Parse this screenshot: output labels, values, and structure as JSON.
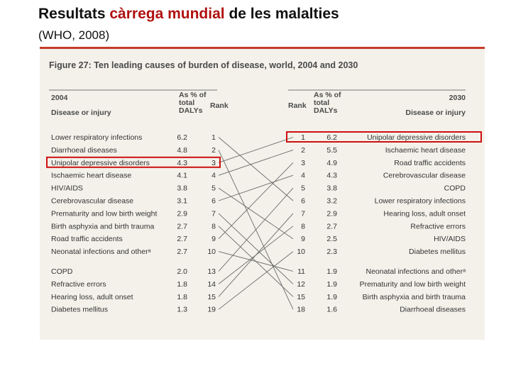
{
  "slide": {
    "title_part1": "Resultats",
    "title_highlight": "càrrega mundial",
    "title_part2": "de les malalties",
    "subtitle": "(WHO, 2008)"
  },
  "chart_data": {
    "type": "table",
    "title": "Figure 27: Ten leading causes of burden of disease, world, 2004 and 2030",
    "left": {
      "year": "2004",
      "col_disease": "Disease or injury",
      "col_pct": [
        "As % of",
        "total",
        "DALYs"
      ],
      "col_rank": "Rank",
      "rows": [
        {
          "disease": "Lower respiratory infections",
          "pct": "6.2",
          "rank": "1"
        },
        {
          "disease": "Diarrhoeal diseases",
          "pct": "4.8",
          "rank": "2"
        },
        {
          "disease": "Unipolar depressive disorders",
          "pct": "4.3",
          "rank": "3"
        },
        {
          "disease": "Ischaemic heart disease",
          "pct": "4.1",
          "rank": "4"
        },
        {
          "disease": "HIV/AIDS",
          "pct": "3.8",
          "rank": "5"
        },
        {
          "disease": "Cerebrovascular disease",
          "pct": "3.1",
          "rank": "6"
        },
        {
          "disease": "Prematurity and low birth weight",
          "pct": "2.9",
          "rank": "7"
        },
        {
          "disease": "Birth asphyxia and birth trauma",
          "pct": "2.7",
          "rank": "8"
        },
        {
          "disease": "Road traffic accidents",
          "pct": "2.7",
          "rank": "9"
        },
        {
          "disease": "Neonatal infections and otherᵃ",
          "pct": "2.7",
          "rank": "10"
        },
        {
          "disease": "COPD",
          "pct": "2.0",
          "rank": "13"
        },
        {
          "disease": "Refractive errors",
          "pct": "1.8",
          "rank": "14"
        },
        {
          "disease": "Hearing loss, adult onset",
          "pct": "1.8",
          "rank": "15"
        },
        {
          "disease": "Diabetes mellitus",
          "pct": "1.3",
          "rank": "19"
        }
      ]
    },
    "right": {
      "year": "2030",
      "col_disease": "Disease or injury",
      "col_pct": [
        "As % of",
        "total",
        "DALYs"
      ],
      "col_rank": "Rank",
      "rows": [
        {
          "disease": "Unipolar depressive disorders",
          "pct": "6.2",
          "rank": "1"
        },
        {
          "disease": "Ischaemic heart disease",
          "pct": "5.5",
          "rank": "2"
        },
        {
          "disease": "Road traffic accidents",
          "pct": "4.9",
          "rank": "3"
        },
        {
          "disease": "Cerebrovascular disease",
          "pct": "4.3",
          "rank": "4"
        },
        {
          "disease": "COPD",
          "pct": "3.8",
          "rank": "5"
        },
        {
          "disease": "Lower respiratory infections",
          "pct": "3.2",
          "rank": "6"
        },
        {
          "disease": "Hearing loss, adult onset",
          "pct": "2.9",
          "rank": "7"
        },
        {
          "disease": "Refractive errors",
          "pct": "2.7",
          "rank": "8"
        },
        {
          "disease": "HIV/AIDS",
          "pct": "2.5",
          "rank": "9"
        },
        {
          "disease": "Diabetes mellitus",
          "pct": "2.3",
          "rank": "10"
        },
        {
          "disease": "Neonatal infections and otherᵃ",
          "pct": "1.9",
          "rank": "11"
        },
        {
          "disease": "Prematurity and low birth weight",
          "pct": "1.9",
          "rank": "12"
        },
        {
          "disease": "Birth asphyxia and birth trauma",
          "pct": "1.9",
          "rank": "15"
        },
        {
          "disease": "Diarrhoeal diseases",
          "pct": "1.6",
          "rank": "18"
        }
      ]
    },
    "links": [
      [
        0,
        5
      ],
      [
        1,
        13
      ],
      [
        2,
        0
      ],
      [
        3,
        1
      ],
      [
        4,
        8
      ],
      [
        5,
        3
      ],
      [
        6,
        11
      ],
      [
        7,
        12
      ],
      [
        8,
        2
      ],
      [
        9,
        10
      ],
      [
        10,
        4
      ],
      [
        11,
        7
      ],
      [
        12,
        6
      ],
      [
        13,
        9
      ]
    ],
    "highlighted": [
      "Unipolar depressive disorders"
    ]
  },
  "colors": {
    "highlight": "#cc1111",
    "accent": "#c43a2a",
    "panel": "#f3f1ea",
    "text": "#333333"
  }
}
